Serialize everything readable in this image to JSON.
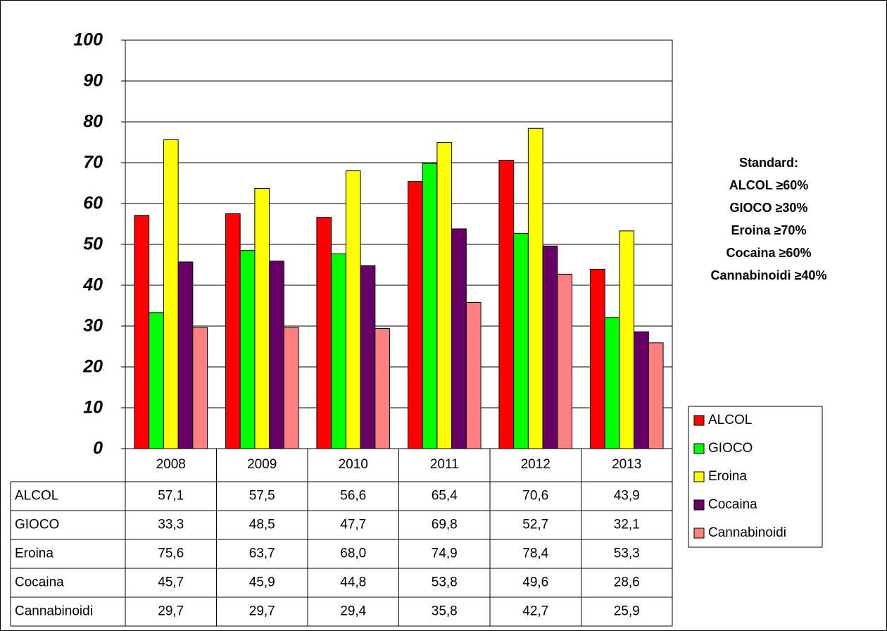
{
  "chart_data": {
    "type": "bar",
    "categories": [
      "2008",
      "2009",
      "2010",
      "2011",
      "2012",
      "2013"
    ],
    "series": [
      {
        "name": "ALCOL",
        "color": "#ff0000",
        "values": [
          57.1,
          57.5,
          56.6,
          65.4,
          70.6,
          43.9
        ],
        "value_labels": [
          "57,1",
          "57,5",
          "56,6",
          "65,4",
          "70,6",
          "43,9"
        ]
      },
      {
        "name": "GIOCO",
        "color": "#00ff00",
        "values": [
          33.3,
          48.5,
          47.7,
          69.8,
          52.7,
          32.1
        ],
        "value_labels": [
          "33,3",
          "48,5",
          "47,7",
          "69,8",
          "52,7",
          "32,1"
        ]
      },
      {
        "name": "Eroina",
        "color": "#ffff00",
        "values": [
          75.6,
          63.7,
          68.0,
          74.9,
          78.4,
          53.3
        ],
        "value_labels": [
          "75,6",
          "63,7",
          "68,0",
          "74,9",
          "78,4",
          "53,3"
        ]
      },
      {
        "name": "Cocaina",
        "color": "#660066",
        "values": [
          45.7,
          45.9,
          44.8,
          53.8,
          49.6,
          28.6
        ],
        "value_labels": [
          "45,7",
          "45,9",
          "44,8",
          "53,8",
          "49,6",
          "28,6"
        ]
      },
      {
        "name": "Cannabinoidi",
        "color": "#ff8080",
        "values": [
          29.7,
          29.7,
          29.4,
          35.8,
          42.7,
          25.9
        ],
        "value_labels": [
          "29,7",
          "29,7",
          "29,4",
          "35,8",
          "42,7",
          "25,9"
        ]
      }
    ],
    "ylim": [
      0,
      100
    ],
    "yticks": [
      0,
      10,
      20,
      30,
      40,
      50,
      60,
      70,
      80,
      90,
      100
    ],
    "grid": true,
    "annotations": [
      "Standard:",
      "ALCOL ≥60%",
      "GIOCO ≥30%",
      "Eroina ≥70%",
      "Cocaina ≥60%",
      "Cannabinoidi ≥40%"
    ],
    "legend": "right"
  }
}
